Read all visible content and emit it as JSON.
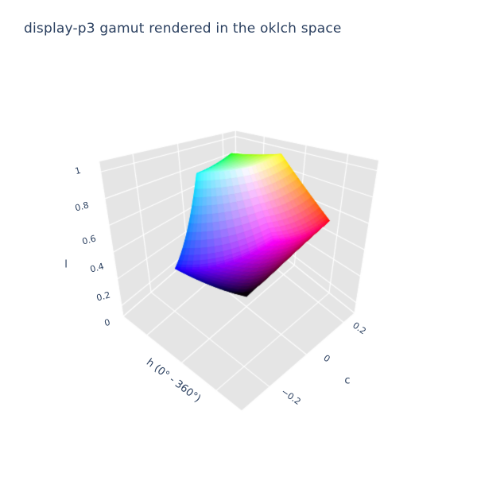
{
  "title": "display-p3 gamut rendered in the oklch space",
  "chart_data": {
    "type": "3d-mesh",
    "title": "display-p3 gamut rendered in the oklch space",
    "description": "Surface of the display-p3 RGB gamut converted to oklab/oklch coordinates (vertical axis = oklch lightness l, horizontal plane = chroma/hue plane), drawn with per-vertex true colors on a gray 3D scene with white gridlines.",
    "axes": {
      "x": {
        "label": "h (0° - 360°)",
        "ticks": [],
        "note": "hue axis, tick labels hidden",
        "plotted_range": [
          -0.336,
          0.347
        ]
      },
      "y": {
        "label": "c",
        "ticks": [
          "−0.2",
          "0",
          "0.2"
        ],
        "plotted_range": [
          -0.35,
          0.258
        ]
      },
      "z": {
        "label": "l",
        "ticks": [
          "0",
          "0.2",
          "0.4",
          "0.6",
          "0.8",
          "1"
        ],
        "range": [
          0,
          1
        ]
      }
    },
    "grid": "on",
    "legend": "none",
    "gamut_corner_points_oklab": [
      {
        "name": "black",
        "L": 0.0,
        "a": 0.0,
        "b": 0.0
      },
      {
        "name": "white",
        "L": 1.0,
        "a": 0.0,
        "b": 0.0
      },
      {
        "name": "red",
        "L": 0.649,
        "a": 0.262,
        "b": 0.145
      },
      {
        "name": "green",
        "L": 0.849,
        "a": -0.305,
        "b": 0.208
      },
      {
        "name": "blue",
        "L": 0.466,
        "a": -0.034,
        "b": -0.322
      },
      {
        "name": "cyan",
        "L": 0.893,
        "a": -0.2,
        "b": -0.047
      },
      {
        "name": "magenta",
        "L": 0.725,
        "a": 0.316,
        "b": -0.172
      },
      {
        "name": "yellow",
        "L": 0.965,
        "a": -0.085,
        "b": 0.23
      }
    ]
  },
  "scene_colors": {
    "background": "#ffffff",
    "wall": "#e5e5e5",
    "gridline": "#ffffff",
    "text": "#2a3f5f"
  }
}
